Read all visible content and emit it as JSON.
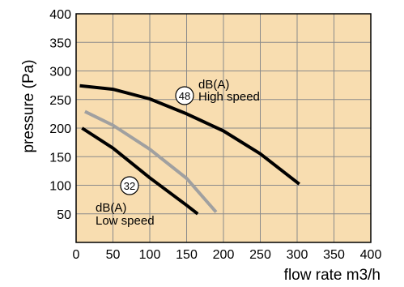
{
  "chart_data": {
    "type": "line",
    "xlabel": "flow rate m3/h",
    "ylabel": "pressure (Pa)",
    "xlim": [
      0,
      400
    ],
    "ylim": [
      0,
      400
    ],
    "x_ticks": [
      0,
      50,
      100,
      150,
      200,
      250,
      300,
      350,
      400
    ],
    "y_ticks": [
      50,
      100,
      150,
      200,
      250,
      300,
      350,
      400
    ],
    "grid": true,
    "background_color": "#f8ddb0",
    "grid_color": "#8a8a8a",
    "series": [
      {
        "color": "#000000",
        "x": [
          5,
          50,
          100,
          150,
          200,
          250,
          303
        ],
        "y": [
          274,
          268,
          251,
          225,
          195,
          155,
          102
        ]
      },
      {
        "color": "#a0a0a0",
        "x": [
          12,
          50,
          100,
          150,
          190
        ],
        "y": [
          229,
          205,
          163,
          112,
          53
        ]
      },
      {
        "color": "#000000",
        "x": [
          8,
          50,
          100,
          150,
          165
        ],
        "y": [
          200,
          165,
          113,
          65,
          50
        ]
      }
    ],
    "annotations": [
      {
        "badge": "48",
        "label_top": "dB(A)",
        "label_bottom": "High speed"
      },
      {
        "badge": "32",
        "label_top": "dB(A)",
        "label_bottom": "Low speed"
      }
    ]
  }
}
